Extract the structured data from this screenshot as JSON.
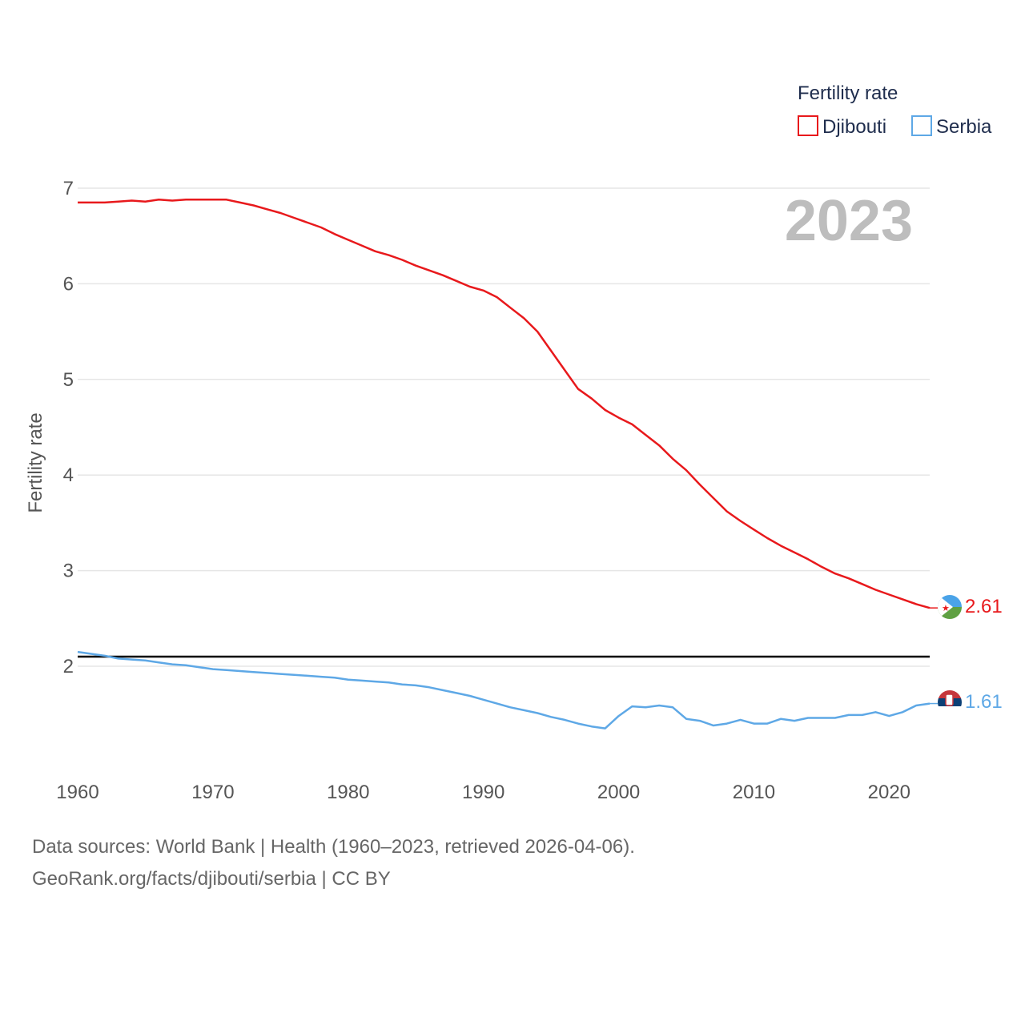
{
  "chart_data": {
    "type": "line",
    "year_label": "2023",
    "legend": {
      "title": "Fertility rate"
    },
    "ylabel": "Fertility rate",
    "xlim": [
      1960,
      2023
    ],
    "ylim": [
      1.0,
      7.2
    ],
    "x_ticks": [
      1960,
      1970,
      1980,
      1990,
      2000,
      2010,
      2020
    ],
    "y_ticks": [
      2,
      3,
      4,
      5,
      6,
      7
    ],
    "reference_line": 2.1,
    "x": [
      1960,
      1961,
      1962,
      1963,
      1964,
      1965,
      1966,
      1967,
      1968,
      1969,
      1970,
      1971,
      1972,
      1973,
      1974,
      1975,
      1976,
      1977,
      1978,
      1979,
      1980,
      1981,
      1982,
      1983,
      1984,
      1985,
      1986,
      1987,
      1988,
      1989,
      1990,
      1991,
      1992,
      1993,
      1994,
      1995,
      1996,
      1997,
      1998,
      1999,
      2000,
      2001,
      2002,
      2003,
      2004,
      2005,
      2006,
      2007,
      2008,
      2009,
      2010,
      2011,
      2012,
      2013,
      2014,
      2015,
      2016,
      2017,
      2018,
      2019,
      2020,
      2021,
      2022,
      2023
    ],
    "series": [
      {
        "name": "Djibouti",
        "color": "#e8191c",
        "end_label": "2.61",
        "values": [
          6.85,
          6.85,
          6.85,
          6.86,
          6.87,
          6.86,
          6.88,
          6.87,
          6.88,
          6.88,
          6.88,
          6.88,
          6.85,
          6.82,
          6.78,
          6.74,
          6.69,
          6.64,
          6.59,
          6.52,
          6.46,
          6.4,
          6.34,
          6.3,
          6.25,
          6.19,
          6.14,
          6.09,
          6.03,
          5.97,
          5.93,
          5.86,
          5.75,
          5.64,
          5.5,
          5.3,
          5.1,
          4.9,
          4.8,
          4.68,
          4.6,
          4.53,
          4.42,
          4.31,
          4.17,
          4.05,
          3.9,
          3.76,
          3.62,
          3.52,
          3.43,
          3.34,
          3.26,
          3.19,
          3.12,
          3.04,
          2.97,
          2.92,
          2.86,
          2.8,
          2.75,
          2.7,
          2.65,
          2.61
        ]
      },
      {
        "name": "Serbia",
        "color": "#5ea8e6",
        "end_label": "1.61",
        "values": [
          2.15,
          2.13,
          2.11,
          2.08,
          2.07,
          2.06,
          2.04,
          2.02,
          2.01,
          1.99,
          1.97,
          1.96,
          1.95,
          1.94,
          1.93,
          1.92,
          1.91,
          1.9,
          1.89,
          1.88,
          1.86,
          1.85,
          1.84,
          1.83,
          1.81,
          1.8,
          1.78,
          1.75,
          1.72,
          1.69,
          1.65,
          1.61,
          1.57,
          1.54,
          1.51,
          1.47,
          1.44,
          1.4,
          1.37,
          1.35,
          1.48,
          1.58,
          1.57,
          1.59,
          1.57,
          1.45,
          1.43,
          1.38,
          1.4,
          1.44,
          1.4,
          1.4,
          1.45,
          1.43,
          1.46,
          1.46,
          1.46,
          1.49,
          1.49,
          1.52,
          1.48,
          1.52,
          1.59,
          1.61
        ]
      }
    ]
  },
  "footer": {
    "line1": "Data sources: World Bank | Health (1960–2023, retrieved 2026-04-06).",
    "line2": "GeoRank.org/facts/djibouti/serbia | CC BY"
  }
}
